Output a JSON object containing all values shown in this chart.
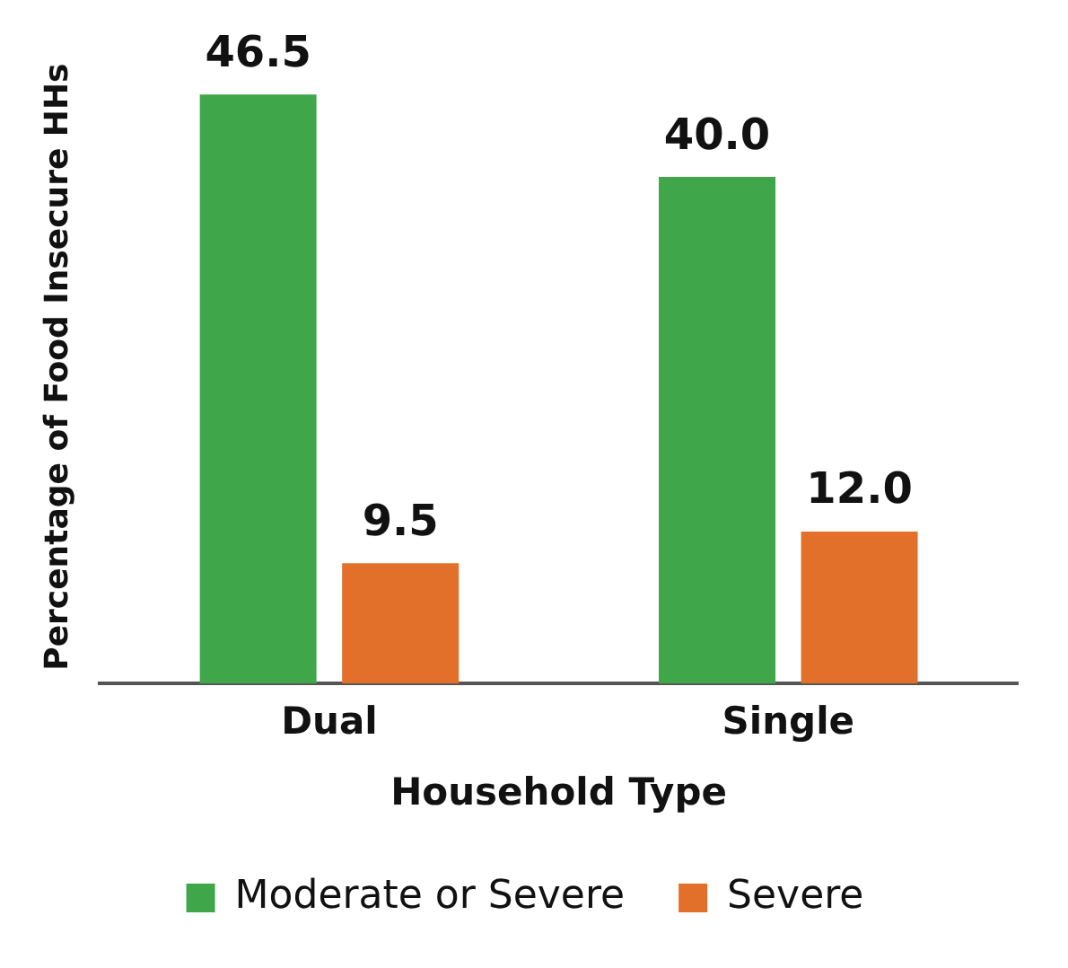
{
  "chart_data": {
    "type": "bar",
    "xlabel": "Household Type",
    "ylabel": "Percentage of Food Insecure HHs",
    "categories": [
      "Dual",
      "Single"
    ],
    "series": [
      {
        "name": "Moderate or Severe",
        "color": "#3fa74a",
        "values": [
          46.5,
          40.0
        ],
        "value_labels": [
          "46.5",
          "40.0"
        ]
      },
      {
        "name": "Severe",
        "color": "#e2702a",
        "values": [
          9.5,
          12.0
        ],
        "value_labels": [
          "9.5",
          "12.0"
        ]
      }
    ],
    "tick_labels": "x",
    "grid": false,
    "legend": "bottom"
  }
}
